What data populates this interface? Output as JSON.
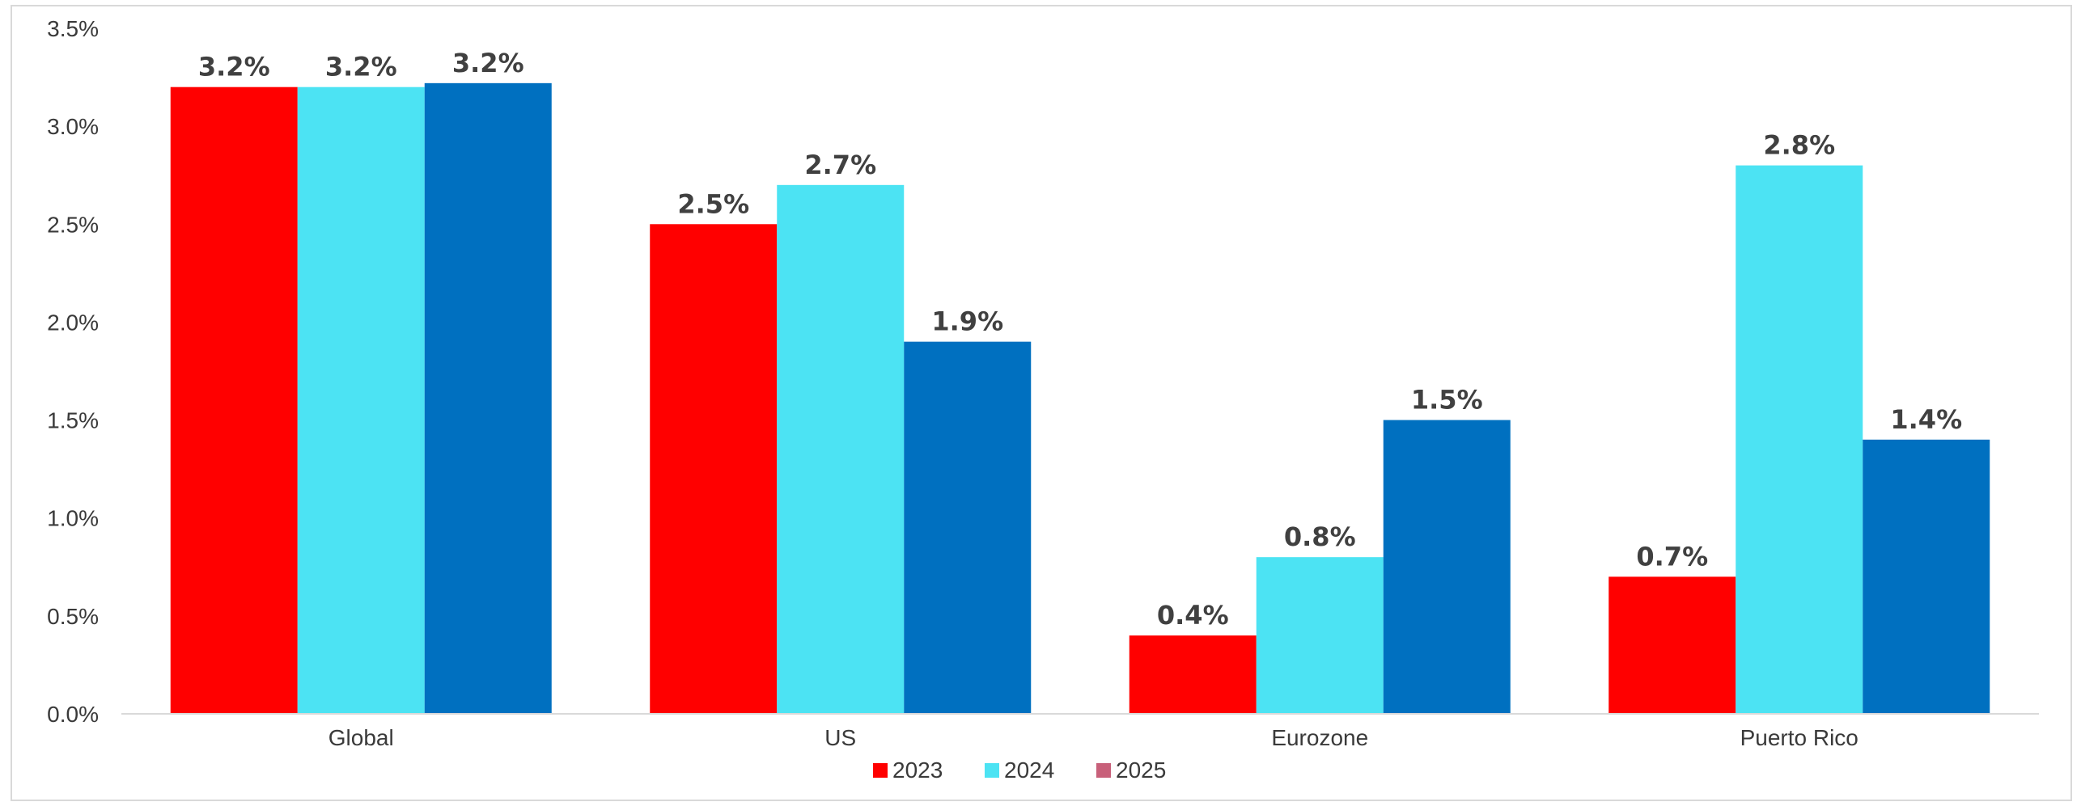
{
  "chart_data": {
    "type": "bar",
    "categories": [
      "Global",
      "US",
      "Eurozone",
      "Puerto Rico"
    ],
    "series": [
      {
        "name": "2023",
        "color": "#ff0000",
        "values": [
          3.2,
          2.5,
          0.4,
          0.7
        ],
        "labels": [
          "3.2%",
          "2.5%",
          "0.4%",
          "0.7%"
        ]
      },
      {
        "name": "2024",
        "color": "#4ce3f3",
        "values": [
          3.2,
          2.7,
          0.8,
          2.8
        ],
        "labels": [
          "3.2%",
          "2.7%",
          "0.8%",
          "2.8%"
        ]
      },
      {
        "name": "2025",
        "color": "#0070c0",
        "legend_color": "#c8607a",
        "values": [
          3.22,
          1.9,
          1.5,
          1.4
        ],
        "labels": [
          "3.2%",
          "1.9%",
          "1.5%",
          "1.4%"
        ]
      }
    ],
    "y_ticks": [
      "0.0%",
      "0.5%",
      "1.0%",
      "1.5%",
      "2.0%",
      "2.5%",
      "3.0%",
      "3.5%"
    ],
    "ylim": [
      0,
      3.5
    ],
    "grid": false,
    "legend_position": "bottom"
  }
}
